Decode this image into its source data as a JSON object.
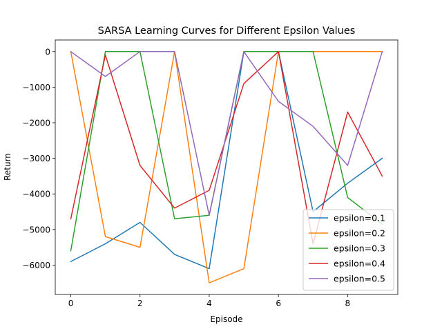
{
  "chart_data": {
    "type": "line",
    "title": "SARSA Learning Curves for Different Epsilon Values",
    "xlabel": "Episode",
    "ylabel": "Return",
    "xlim": [
      -0.45,
      9.45
    ],
    "ylim": [
      -6825,
      325
    ],
    "xticks": [
      0,
      2,
      4,
      6,
      8
    ],
    "yticks": [
      -6000,
      -5000,
      -4000,
      -3000,
      -2000,
      -1000,
      0
    ],
    "grid": false,
    "legend_position": "lower-right",
    "x": [
      0,
      1,
      2,
      3,
      4,
      5,
      6,
      7,
      8,
      9
    ],
    "series": [
      {
        "name": "epsilon=0.1",
        "color": "#1f77b4",
        "values": [
          -5900,
          -5400,
          -4800,
          -5700,
          -6100,
          0,
          0,
          -4500,
          -3700,
          -3000
        ]
      },
      {
        "name": "epsilon=0.2",
        "color": "#ff7f0e",
        "values": [
          0,
          -5200,
          -5500,
          0,
          -6500,
          -6100,
          0,
          0,
          0,
          0
        ]
      },
      {
        "name": "epsilon=0.3",
        "color": "#2ca02c",
        "values": [
          -5600,
          0,
          0,
          -4700,
          -4600,
          0,
          0,
          0,
          -4100,
          -4850
        ]
      },
      {
        "name": "epsilon=0.4",
        "color": "#d62728",
        "values": [
          -4700,
          -100,
          -3200,
          -4400,
          -3900,
          -900,
          0,
          -5400,
          -1700,
          -3500
        ]
      },
      {
        "name": "epsilon=0.5",
        "color": "#9467bd",
        "values": [
          0,
          -700,
          0,
          0,
          -4600,
          0,
          -1400,
          -2100,
          -3200,
          0
        ]
      }
    ]
  }
}
